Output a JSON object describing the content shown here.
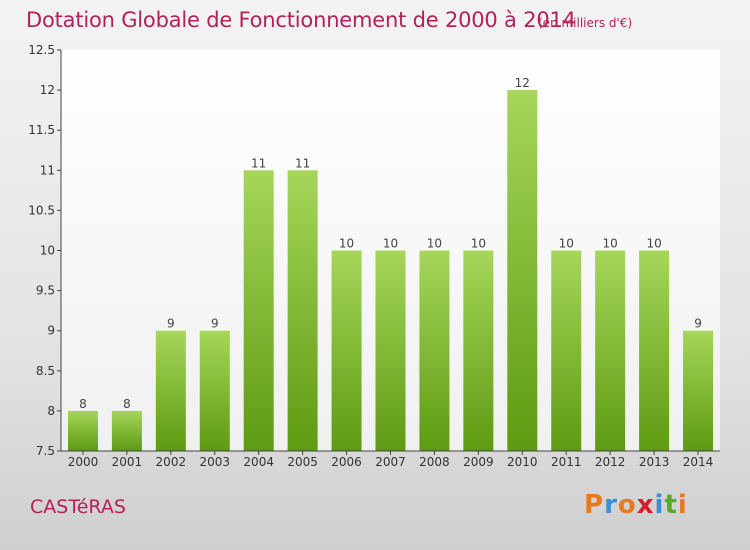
{
  "header": {
    "title": "Dotation Globale de Fonctionnement de 2000 à 2014",
    "units": "(en milliers d'€)"
  },
  "footer": {
    "town": "CASTéRAS",
    "logo_text": "Proxiti"
  },
  "colors": {
    "title": "#b5205a",
    "bar_top": "#a6d65a",
    "bar_bottom": "#5e9a12",
    "logo_letters": [
      "#e87a1e",
      "#3a8fd6",
      "#e87a1e",
      "#d61e2a",
      "#3a8fd6",
      "#5aa82a",
      "#e87a1e"
    ]
  },
  "chart_data": {
    "type": "bar",
    "title": "Dotation Globale de Fonctionnement de 2000 à 2014",
    "subtitle": "(en milliers d'€)",
    "xlabel": "",
    "ylabel": "",
    "ylim": [
      7.5,
      12.5
    ],
    "yticks": [
      "7.5",
      "8",
      "8.5",
      "9",
      "9.5",
      "10",
      "10.5",
      "11",
      "11.5",
      "12",
      "12.5"
    ],
    "grid": false,
    "categories": [
      "2000",
      "2001",
      "2002",
      "2003",
      "2004",
      "2005",
      "2006",
      "2007",
      "2008",
      "2009",
      "2010",
      "2011",
      "2012",
      "2013",
      "2014"
    ],
    "values": [
      8,
      8,
      9,
      9,
      11,
      11,
      10,
      10,
      10,
      10,
      12,
      10,
      10,
      10,
      9
    ]
  }
}
